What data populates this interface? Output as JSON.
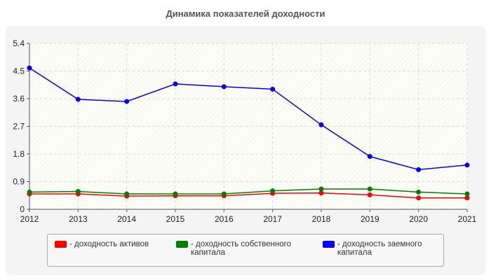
{
  "chart_data": {
    "type": "line",
    "title": "Динамика показателей доходности",
    "x": [
      "2012",
      "2013",
      "2014",
      "2015",
      "2016",
      "2017",
      "2018",
      "2019",
      "2020",
      "2021"
    ],
    "yticks": [
      "0",
      "0.9",
      "1.8",
      "2.7",
      "3.6",
      "4.5",
      "5.4"
    ],
    "ylim": [
      0,
      5.4
    ],
    "grid": true,
    "legend_position": "bottom",
    "series": [
      {
        "name": "- доходность активов",
        "color": "#ff0000",
        "values": [
          0.5,
          0.5,
          0.43,
          0.44,
          0.44,
          0.52,
          0.53,
          0.47,
          0.37,
          0.37
        ]
      },
      {
        "name": "- доходность собственного капитала",
        "color": "#008000",
        "values": [
          0.56,
          0.58,
          0.5,
          0.5,
          0.5,
          0.6,
          0.66,
          0.66,
          0.56,
          0.5
        ]
      },
      {
        "name": "- доходность заемного капитала",
        "color": "#0000ff",
        "values": [
          4.6,
          3.58,
          3.51,
          4.08,
          3.99,
          3.91,
          2.75,
          1.72,
          1.29,
          1.44
        ]
      }
    ]
  }
}
